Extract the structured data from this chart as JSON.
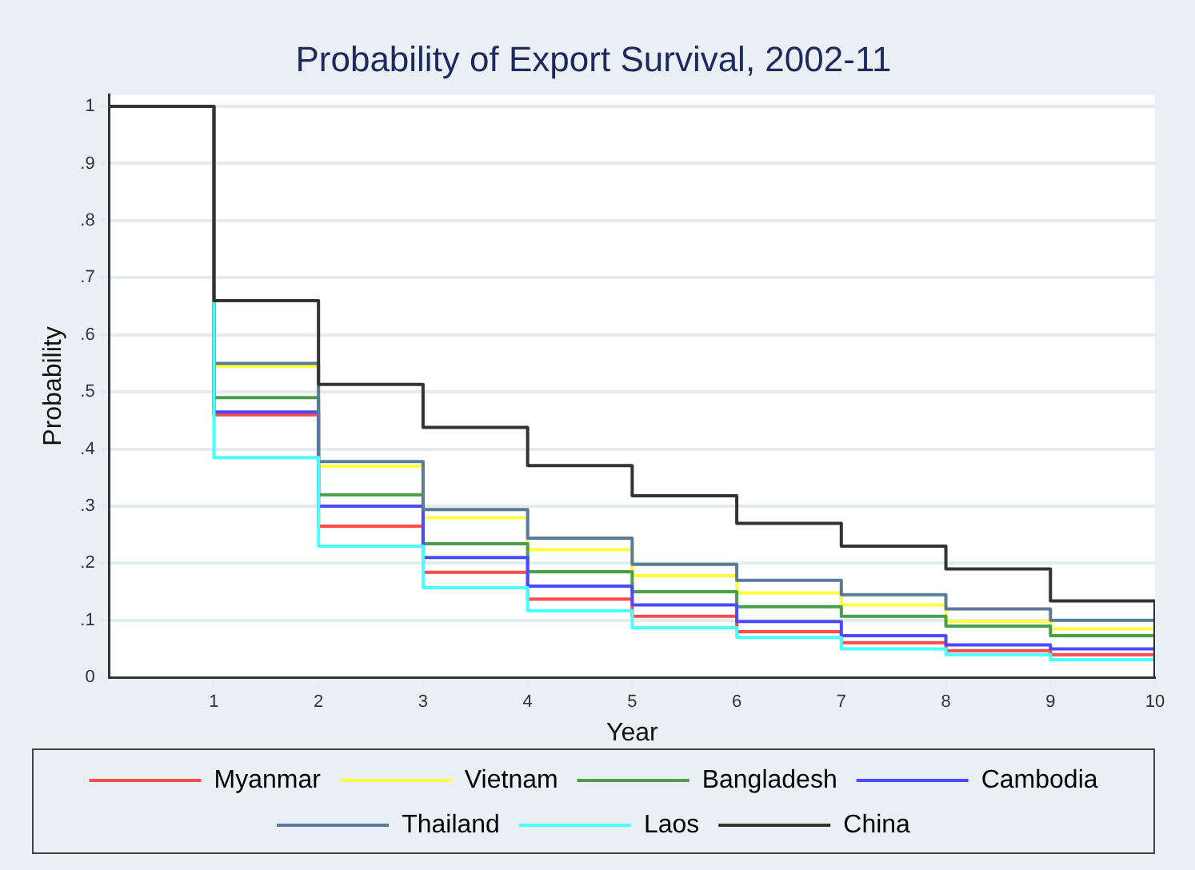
{
  "chart_data": {
    "type": "step",
    "title": "Probability of Export Survival, 2002-11",
    "xlabel": "Year",
    "ylabel": "Probability",
    "x": [
      0,
      1,
      2,
      3,
      4,
      5,
      6,
      7,
      8,
      9,
      10
    ],
    "series": [
      {
        "name": "Myanmar",
        "color": "#ff4a4a",
        "values": [
          1,
          0.46,
          0.265,
          0.184,
          0.137,
          0.107,
          0.08,
          0.061,
          0.047,
          0.04,
          0.04
        ]
      },
      {
        "name": "Vietnam",
        "color": "#ffff40",
        "values": [
          1,
          0.545,
          0.37,
          0.28,
          0.224,
          0.178,
          0.148,
          0.127,
          0.098,
          0.085,
          0.085
        ]
      },
      {
        "name": "Bangladesh",
        "color": "#4a9e4a",
        "values": [
          1,
          0.49,
          0.32,
          0.234,
          0.185,
          0.15,
          0.124,
          0.107,
          0.09,
          0.073,
          0.073
        ]
      },
      {
        "name": "Cambodia",
        "color": "#4a4aff",
        "values": [
          1,
          0.465,
          0.3,
          0.21,
          0.16,
          0.127,
          0.098,
          0.073,
          0.057,
          0.05,
          0.05
        ]
      },
      {
        "name": "Thailand",
        "color": "#5a7a99",
        "values": [
          1,
          0.55,
          0.378,
          0.294,
          0.244,
          0.198,
          0.17,
          0.145,
          0.12,
          0.1,
          0.1
        ]
      },
      {
        "name": "Laos",
        "color": "#4affff",
        "values": [
          1,
          0.385,
          0.23,
          0.157,
          0.117,
          0.087,
          0.07,
          0.05,
          0.04,
          0.031,
          0.031
        ]
      },
      {
        "name": "China",
        "color": "#333333",
        "values": [
          1,
          0.66,
          0.513,
          0.438,
          0.371,
          0.318,
          0.27,
          0.23,
          0.19,
          0.134,
          0
        ]
      }
    ],
    "xlim": [
      0,
      10
    ],
    "xticks": [
      1,
      2,
      3,
      4,
      5,
      6,
      7,
      8,
      9,
      10
    ],
    "ylim": [
      0,
      1.02
    ],
    "yticks": [
      0,
      {
        "value": 0.1,
        "label": ".1"
      },
      {
        "value": 0.2,
        "label": ".2"
      },
      {
        "value": 0.3,
        "label": ".3"
      },
      {
        "value": 0.4,
        "label": ".4"
      },
      {
        "value": 0.5,
        "label": ".5"
      },
      {
        "value": 0.6,
        "label": ".6"
      },
      {
        "value": 0.7,
        "label": ".7"
      },
      {
        "value": 0.8,
        "label": ".8"
      },
      {
        "value": 0.9,
        "label": ".9"
      },
      1
    ],
    "grid": "y",
    "legend": "bottom",
    "marker": "none",
    "line_style": "solid"
  }
}
